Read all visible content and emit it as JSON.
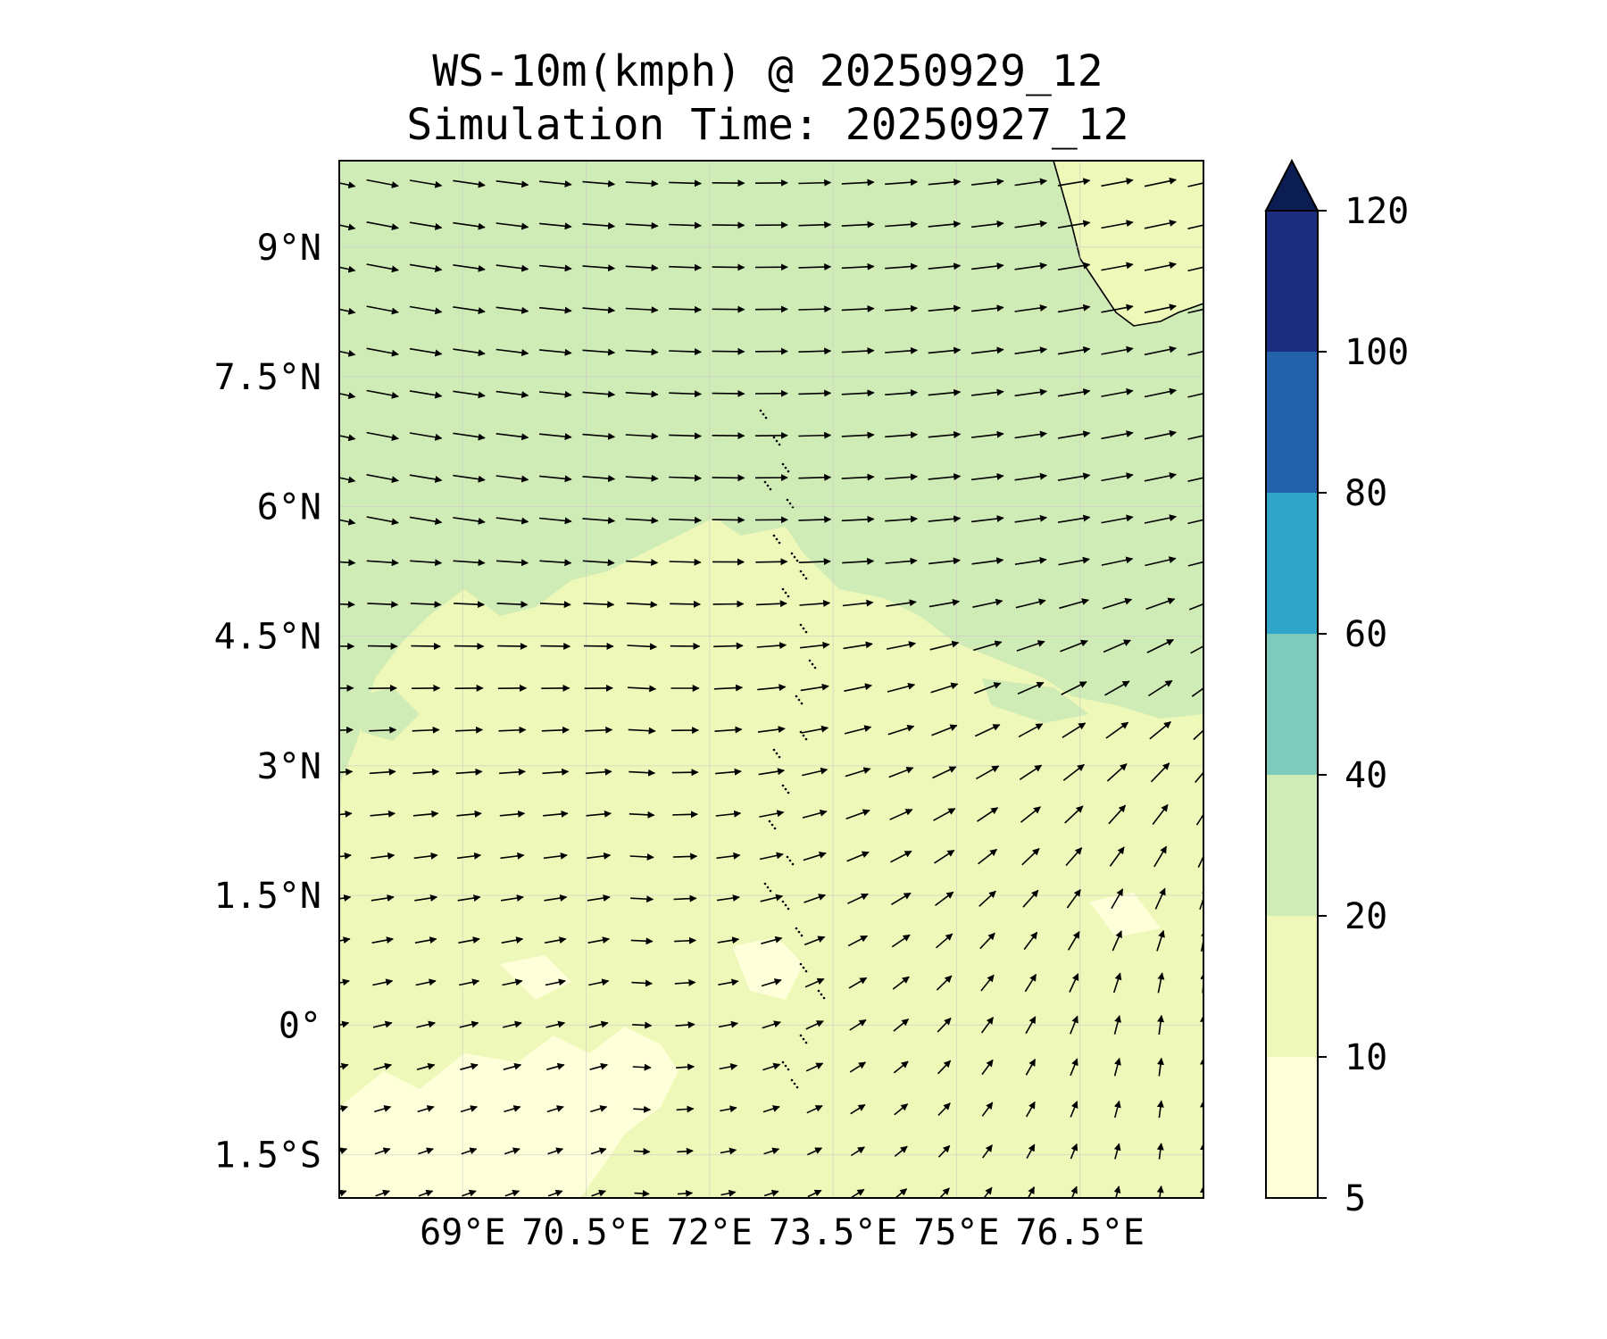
{
  "title": {
    "line1": "WS-10m(kmph) @ 20250929_12",
    "line2": "Simulation Time: 20250927_12"
  },
  "map": {
    "lon_range": [
      67.5,
      78.0
    ],
    "lat_range": [
      -2.0,
      10.0
    ],
    "lon_ticks": [
      {
        "value": 69.0,
        "label": "69°E"
      },
      {
        "value": 70.5,
        "label": "70.5°E"
      },
      {
        "value": 72.0,
        "label": "72°E"
      },
      {
        "value": 73.5,
        "label": "73.5°E"
      },
      {
        "value": 75.0,
        "label": "75°E"
      },
      {
        "value": 76.5,
        "label": "76.5°E"
      }
    ],
    "lat_ticks": [
      {
        "value": 9.0,
        "label": "9°N"
      },
      {
        "value": 7.5,
        "label": "7.5°N"
      },
      {
        "value": 6.0,
        "label": "6°N"
      },
      {
        "value": 4.5,
        "label": "4.5°N"
      },
      {
        "value": 3.0,
        "label": "3°N"
      },
      {
        "value": 1.5,
        "label": "1.5°N"
      },
      {
        "value": 0.0,
        "label": "0°"
      },
      {
        "value": -1.5,
        "label": "1.5°S"
      }
    ],
    "gridlines": true,
    "field_colors": {
      "band_5_10": "#ffffd9",
      "band_10_20": "#eef8b8",
      "band_20_40": "#d0ecb6"
    }
  },
  "colorbar": {
    "levels": [
      {
        "label": "5",
        "value": 5
      },
      {
        "label": "10",
        "value": 10
      },
      {
        "label": "20",
        "value": 20
      },
      {
        "label": "40",
        "value": 40
      },
      {
        "label": "60",
        "value": 60
      },
      {
        "label": "80",
        "value": 80
      },
      {
        "label": "100",
        "value": 100
      },
      {
        "label": "120",
        "value": 120
      }
    ],
    "colors": [
      "#ffffd9",
      "#eef8b8",
      "#d0ecb6",
      "#7ecbbb",
      "#31a5c8",
      "#2362aa",
      "#1c2d80"
    ],
    "extend_color": "#0b1d52",
    "extend": "max"
  }
}
